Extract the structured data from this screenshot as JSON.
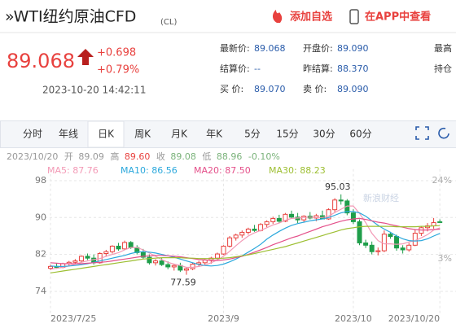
{
  "header": {
    "title": "»WTI纽约原油CFD",
    "code": "(CL)",
    "add_watch": "添加自选",
    "open_app": "在APP中查看"
  },
  "quote": {
    "price": "89.068",
    "change": "+0.698",
    "change_pct": "+0.79%",
    "time": "2023-10-20 14:42:11",
    "fields": [
      {
        "label": "最新价:",
        "value": "89.068"
      },
      {
        "label": "开盘价:",
        "value": "89.090"
      },
      {
        "label": "最高"
      },
      {
        "label": "结算价:",
        "value": "--"
      },
      {
        "label": "昨结算:",
        "value": "88.370"
      },
      {
        "label": "持仓"
      },
      {
        "label": "买  价:",
        "value": "89.070"
      },
      {
        "label": "卖  价:",
        "value": "89.090"
      }
    ]
  },
  "tabs": [
    "分时",
    "年线",
    "日K",
    "周K",
    "月K",
    "年K",
    "5分",
    "15分",
    "30分",
    "60分"
  ],
  "selected_tab": "日K",
  "info": {
    "date": "2023/10/20",
    "ohlc": [
      {
        "label": "开",
        "value": "89.09"
      },
      {
        "label": "高",
        "value": "89.60"
      },
      {
        "label": "收",
        "value": "89.08"
      },
      {
        "label": "低",
        "value": "88.96"
      }
    ],
    "change": "-0.10%"
  },
  "chart_data": {
    "type": "candlestick",
    "watermark": "新浪财经",
    "up_color": "#e8413e",
    "down_color": "#1f9e4a",
    "ylim": [
      69,
      100.5
    ],
    "yticks": [
      74,
      82,
      90,
      98
    ],
    "y2lim": [
      -11.9,
      27.1
    ],
    "y2ticks": [
      {
        "value": 24,
        "label": "24%"
      },
      {
        "value": 3,
        "label": "3%"
      }
    ],
    "xlim": [
      -1,
      65
    ],
    "xticks": [
      {
        "value": 0,
        "label": "2023/7/25"
      },
      {
        "value": 28,
        "label": "2023/9"
      },
      {
        "value": 49,
        "label": "2023/10"
      },
      {
        "value": 63,
        "label": "2023/10/20"
      }
    ],
    "grid": true,
    "annotations": [
      {
        "text": "95.03",
        "at": "high"
      },
      {
        "text": "77.59",
        "at": "low"
      }
    ],
    "candles": [
      [
        79.0,
        79.8,
        78.6,
        79.4
      ],
      [
        79.4,
        80.0,
        78.9,
        79.2
      ],
      [
        79.2,
        80.2,
        79.0,
        80.0
      ],
      [
        80.0,
        80.6,
        79.5,
        80.3
      ],
      [
        80.3,
        81.0,
        79.8,
        80.6
      ],
      [
        80.6,
        81.8,
        80.2,
        81.6
      ],
      [
        81.6,
        82.2,
        80.8,
        81.2
      ],
      [
        81.2,
        82.0,
        79.8,
        80.2
      ],
      [
        80.2,
        82.5,
        80.0,
        82.2
      ],
      [
        82.2,
        83.0,
        81.5,
        82.6
      ],
      [
        82.6,
        84.0,
        82.2,
        83.8
      ],
      [
        83.8,
        84.5,
        82.8,
        83.2
      ],
      [
        83.2,
        85.0,
        83.0,
        84.6
      ],
      [
        84.6,
        84.9,
        83.2,
        83.5
      ],
      [
        83.5,
        84.0,
        82.0,
        82.4
      ],
      [
        82.4,
        83.2,
        81.0,
        81.4
      ],
      [
        81.4,
        82.0,
        79.8,
        80.2
      ],
      [
        80.2,
        81.0,
        79.6,
        80.6
      ],
      [
        80.6,
        81.2,
        79.5,
        79.8
      ],
      [
        79.8,
        80.5,
        78.8,
        79.3
      ],
      [
        79.3,
        80.0,
        78.5,
        79.6
      ],
      [
        79.6,
        80.2,
        78.2,
        78.6
      ],
      [
        78.6,
        79.2,
        77.59,
        78.9
      ],
      [
        78.9,
        80.2,
        78.6,
        79.9
      ],
      [
        79.9,
        80.6,
        79.3,
        80.2
      ],
      [
        80.2,
        81.0,
        79.6,
        80.8
      ],
      [
        80.8,
        81.5,
        80.0,
        81.2
      ],
      [
        81.2,
        82.4,
        80.8,
        82.1
      ],
      [
        82.1,
        84.0,
        81.9,
        83.8
      ],
      [
        83.8,
        86.0,
        83.5,
        85.6
      ],
      [
        85.6,
        86.5,
        85.0,
        86.2
      ],
      [
        86.2,
        87.2,
        85.6,
        86.8
      ],
      [
        86.8,
        87.8,
        86.3,
        87.5
      ],
      [
        87.5,
        88.4,
        86.9,
        87.2
      ],
      [
        87.2,
        88.8,
        87.0,
        88.5
      ],
      [
        88.5,
        89.4,
        87.9,
        89.1
      ],
      [
        89.1,
        90.2,
        88.6,
        89.8
      ],
      [
        89.8,
        90.6,
        88.8,
        89.2
      ],
      [
        89.2,
        91.0,
        89.0,
        90.7
      ],
      [
        90.7,
        91.5,
        89.8,
        90.1
      ],
      [
        90.1,
        91.0,
        88.8,
        89.5
      ],
      [
        89.5,
        90.5,
        89.0,
        90.3
      ],
      [
        90.3,
        91.2,
        89.6,
        89.9
      ],
      [
        89.9,
        90.8,
        89.2,
        90.4
      ],
      [
        90.4,
        91.5,
        89.9,
        89.7
      ],
      [
        89.7,
        92.0,
        89.5,
        91.7
      ],
      [
        91.7,
        94.2,
        91.2,
        93.8
      ],
      [
        93.8,
        95.03,
        92.8,
        93.6
      ],
      [
        93.6,
        94.0,
        90.5,
        91.0
      ],
      [
        91.0,
        91.8,
        88.6,
        89.1
      ],
      [
        89.1,
        89.6,
        84.0,
        84.5
      ],
      [
        84.5,
        85.2,
        83.4,
        84.0
      ],
      [
        84.0,
        84.8,
        82.0,
        82.6
      ],
      [
        82.6,
        83.5,
        81.8,
        82.8
      ],
      [
        82.8,
        87.2,
        82.5,
        86.4
      ],
      [
        86.4,
        86.9,
        85.4,
        85.9
      ],
      [
        85.9,
        86.3,
        82.8,
        83.4
      ],
      [
        83.4,
        84.0,
        82.2,
        83.0
      ],
      [
        83.0,
        84.5,
        82.6,
        84.0
      ],
      [
        84.0,
        87.5,
        83.8,
        86.6
      ],
      [
        86.6,
        88.2,
        86.0,
        87.8
      ],
      [
        87.8,
        88.8,
        87.0,
        88.2
      ],
      [
        88.2,
        89.9,
        87.6,
        88.9
      ],
      [
        89.09,
        89.6,
        88.96,
        89.08
      ]
    ],
    "series": [
      {
        "name": "MA5",
        "label": "MA5: 87.76",
        "color": "#f39ab6",
        "values": [
          78.8,
          79.0,
          79.2,
          79.5,
          79.9,
          80.3,
          80.6,
          80.9,
          81.1,
          81.6,
          82.0,
          82.4,
          83.0,
          83.5,
          83.5,
          83.0,
          82.3,
          81.6,
          80.9,
          80.3,
          79.9,
          79.6,
          79.2,
          79.2,
          79.4,
          79.7,
          80.2,
          80.8,
          81.6,
          82.7,
          83.9,
          85.0,
          86.0,
          86.7,
          87.2,
          87.8,
          88.4,
          88.8,
          89.4,
          89.8,
          89.9,
          90.0,
          90.1,
          90.0,
          90.0,
          90.3,
          91.1,
          91.8,
          92.5,
          92.5,
          90.9,
          88.9,
          86.6,
          85.0,
          84.3,
          84.3,
          84.2,
          84.3,
          84.7,
          85.0,
          85.6,
          86.3,
          87.3,
          87.76
        ]
      },
      {
        "name": "MA10",
        "label": "MA10: 86.56",
        "color": "#2ba8dc",
        "values": [
          79.5,
          79.4,
          79.4,
          79.5,
          79.6,
          79.8,
          80.0,
          80.3,
          80.6,
          80.9,
          81.2,
          81.5,
          81.8,
          82.2,
          82.5,
          82.6,
          82.5,
          82.3,
          82.0,
          81.7,
          81.4,
          81.0,
          80.6,
          80.2,
          79.8,
          79.6,
          79.5,
          79.6,
          79.9,
          80.4,
          81.0,
          81.7,
          82.5,
          83.3,
          84.2,
          85.3,
          86.2,
          87.0,
          87.7,
          88.3,
          88.7,
          89.0,
          89.3,
          89.5,
          89.7,
          90.0,
          90.5,
          91.0,
          91.3,
          91.3,
          91.0,
          90.3,
          89.3,
          88.3,
          87.5,
          86.8,
          86.0,
          85.4,
          85.0,
          84.9,
          85.0,
          85.4,
          86.0,
          86.56
        ]
      },
      {
        "name": "MA20",
        "label": "MA20: 87.50",
        "color": "#e4508a",
        "values": [
          80.2,
          80.1,
          80.0,
          80.0,
          80.0,
          80.0,
          80.1,
          80.2,
          80.3,
          80.4,
          80.6,
          80.8,
          81.0,
          81.2,
          81.4,
          81.6,
          81.7,
          81.8,
          81.8,
          81.7,
          81.6,
          81.5,
          81.3,
          81.1,
          80.9,
          80.8,
          80.7,
          80.7,
          80.8,
          81.0,
          81.3,
          81.6,
          82.0,
          82.5,
          83.0,
          83.5,
          84.1,
          84.6,
          85.1,
          85.6,
          86.0,
          86.5,
          87.0,
          87.5,
          88.0,
          88.4,
          88.8,
          89.2,
          89.5,
          89.7,
          89.8,
          89.6,
          89.3,
          89.0,
          88.8,
          88.5,
          88.2,
          87.9,
          87.6,
          87.4,
          87.3,
          87.3,
          87.4,
          87.5
        ]
      },
      {
        "name": "MA30",
        "label": "MA30: 88.23",
        "color": "#9dbf32",
        "values": [
          78.0,
          78.2,
          78.4,
          78.6,
          78.8,
          79.0,
          79.2,
          79.4,
          79.6,
          79.8,
          80.0,
          80.2,
          80.4,
          80.6,
          80.8,
          81.0,
          81.1,
          81.2,
          81.3,
          81.3,
          81.3,
          81.3,
          81.2,
          81.2,
          81.1,
          81.1,
          81.1,
          81.1,
          81.2,
          81.3,
          81.5,
          81.7,
          81.9,
          82.2,
          82.5,
          82.8,
          83.1,
          83.4,
          83.7,
          84.1,
          84.5,
          84.9,
          85.3,
          85.7,
          86.1,
          86.5,
          86.9,
          87.3,
          87.6,
          87.8,
          88.0,
          88.1,
          88.1,
          88.1,
          88.1,
          88.1,
          88.0,
          88.0,
          88.0,
          88.0,
          88.1,
          88.1,
          88.2,
          88.23
        ]
      }
    ]
  }
}
